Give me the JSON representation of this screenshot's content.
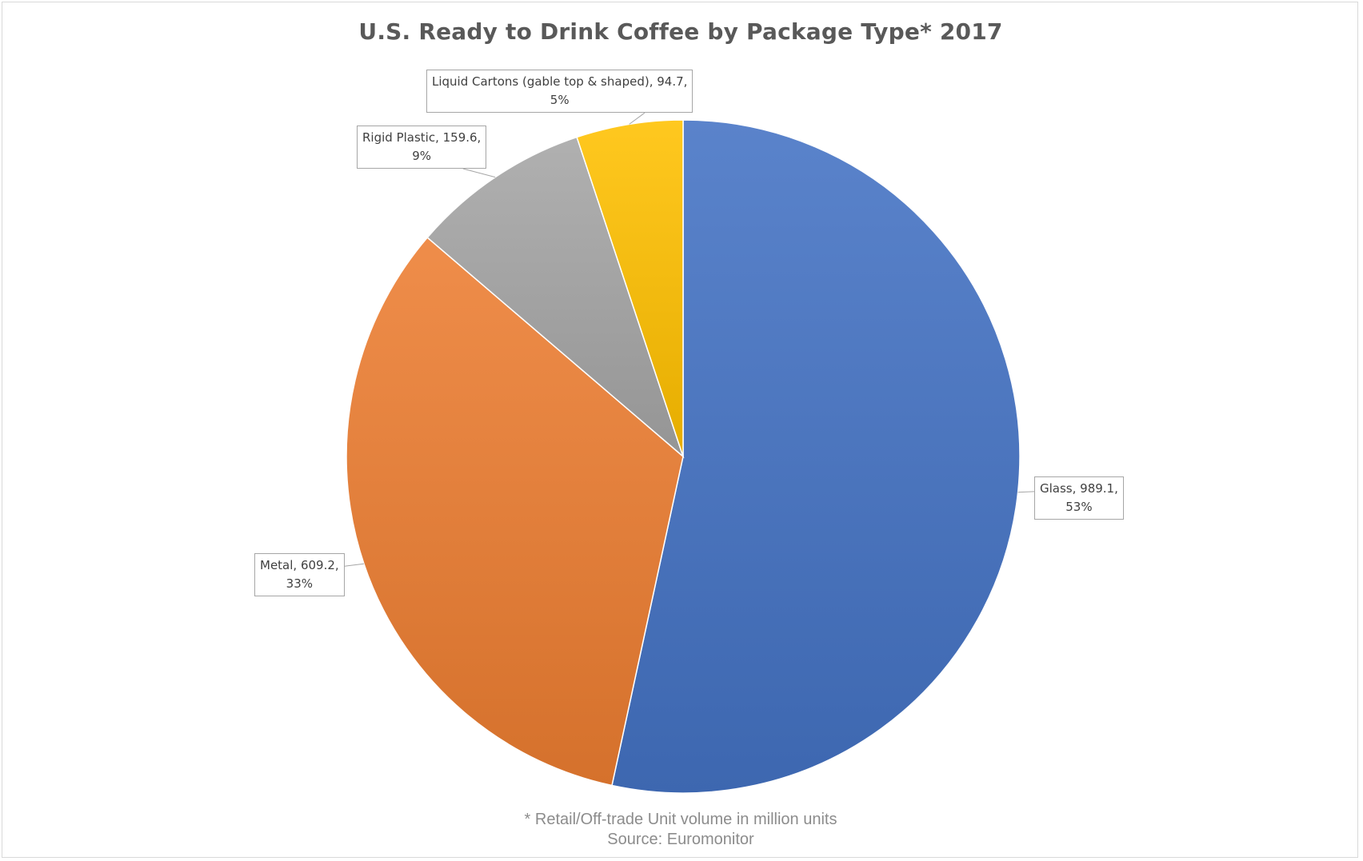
{
  "chart_data": {
    "type": "pie",
    "title": "U.S. Ready to Drink Coffee by Package Type* 2017",
    "slices": [
      {
        "name": "Glass",
        "value": 989.1,
        "percent": "53%",
        "color": "#4472c4"
      },
      {
        "name": "Metal",
        "value": 609.2,
        "percent": "33%",
        "color": "#ed7d31"
      },
      {
        "name": "Rigid Plastic",
        "value": 159.6,
        "percent": "9%",
        "color": "#a5a5a5"
      },
      {
        "name": "Liquid Cartons (gable top & shaped)",
        "value": 94.7,
        "percent": "5%",
        "color": "#ffc000"
      }
    ],
    "labels": [
      {
        "line1": "Glass, 989.1,",
        "line2": "53%"
      },
      {
        "line1": "Metal, 609.2,",
        "line2": "33%"
      },
      {
        "line1": "Rigid Plastic, 159.6,",
        "line2": "9%"
      },
      {
        "line1": "Liquid Cartons (gable top & shaped), 94.7,",
        "line2": "5%"
      }
    ],
    "footnote": "* Retail/Off-trade Unit volume in million units",
    "source": "Source: Euromonitor"
  }
}
